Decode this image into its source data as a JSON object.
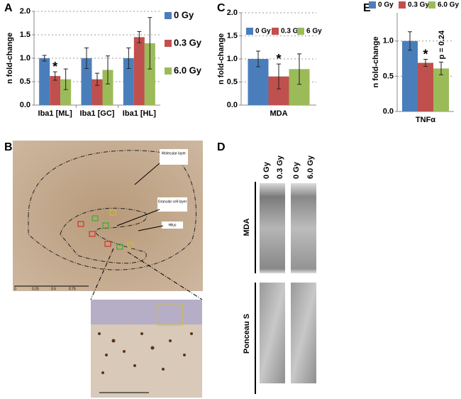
{
  "chart_data": [
    {
      "type": "bar",
      "panel_label": "A",
      "y_label": "n fold-change",
      "categories": [
        "Iba1 [ML]",
        "Iba1 [GC]",
        "Iba1 [HL]"
      ],
      "series": [
        {
          "name": "0 Gy",
          "color": "#4a7ebb",
          "values": [
            1.0,
            1.0,
            1.0
          ],
          "errors": [
            0.06,
            0.22,
            0.22
          ]
        },
        {
          "name": "0.3 Gy",
          "color": "#c0504d",
          "values": [
            0.62,
            0.55,
            1.45
          ],
          "errors": [
            0.09,
            0.13,
            0.12
          ]
        },
        {
          "name": "6.0 Gy",
          "color": "#9bbb59",
          "values": [
            0.55,
            0.75,
            1.32
          ],
          "errors": [
            0.22,
            0.3,
            0.55
          ]
        }
      ],
      "ylim": [
        0,
        2.0
      ],
      "yticks": [
        {
          "value": 0,
          "label": "0.0"
        },
        {
          "value": 0.5,
          "label": "0.5"
        },
        {
          "value": 1,
          "label": "1.0"
        },
        {
          "value": 1.5,
          "label": "1.5"
        },
        {
          "value": 2,
          "label": "2.0"
        }
      ],
      "grid": true,
      "legend": "right",
      "annotations": [
        "*"
      ]
    },
    {
      "type": "bar",
      "panel_label": "C",
      "y_label": "n fold-change",
      "categories": [
        "MDA"
      ],
      "series": [
        {
          "name": "0 Gy",
          "color": "#4a7ebb",
          "values": [
            1.0
          ],
          "errors": [
            0.17
          ]
        },
        {
          "name": "0.3 Gy",
          "color": "#c0504d",
          "values": [
            0.62
          ],
          "errors": [
            0.27
          ]
        },
        {
          "name": "6 Gy",
          "color": "#9bbb59",
          "values": [
            0.78
          ],
          "errors": [
            0.33
          ]
        }
      ],
      "ylim": [
        0,
        2.0
      ],
      "yticks": [
        {
          "value": 0,
          "label": "0.0"
        },
        {
          "value": 0.5,
          "label": "0.5"
        },
        {
          "value": 1,
          "label": "1.0"
        },
        {
          "value": 1.5,
          "label": "1.5"
        },
        {
          "value": 2,
          "label": "2.0"
        }
      ],
      "grid": true,
      "legend": "top",
      "annotations": [
        "*"
      ]
    },
    {
      "type": "bar",
      "panel_label": "E",
      "y_label": "n fold-change",
      "categories": [
        "TNFα"
      ],
      "series": [
        {
          "name": "0 Gy",
          "color": "#4a7ebb",
          "values": [
            1.0
          ],
          "errors": [
            0.13
          ]
        },
        {
          "name": "0.3 Gy",
          "color": "#c0504d",
          "values": [
            0.69
          ],
          "errors": [
            0.05
          ]
        },
        {
          "name": "6.0 Gy",
          "color": "#9bbb59",
          "values": [
            0.61
          ],
          "errors": [
            0.09
          ]
        }
      ],
      "ylim": [
        0,
        1.4
      ],
      "yticks": [
        {
          "value": 0,
          "label": "0.0"
        },
        {
          "value": 0.5,
          "label": "0.5"
        },
        {
          "value": 1,
          "label": "1.0"
        }
      ],
      "grid": true,
      "legend": "above",
      "annotations": [
        "*",
        "p = 0.24"
      ]
    }
  ],
  "panels": {
    "B": {
      "label": "B",
      "regions": [
        "Molecular layer",
        "Granular cell layer",
        "Hilus"
      ],
      "scale": [
        "0",
        "0.25",
        "0.5",
        "0.75"
      ]
    },
    "D": {
      "label": "D",
      "lanes": [
        "0 Gy",
        "0.3 Gy",
        "0 Gy",
        "6.0 Gy"
      ],
      "blots": [
        "MDA",
        "Ponceau S"
      ]
    }
  }
}
